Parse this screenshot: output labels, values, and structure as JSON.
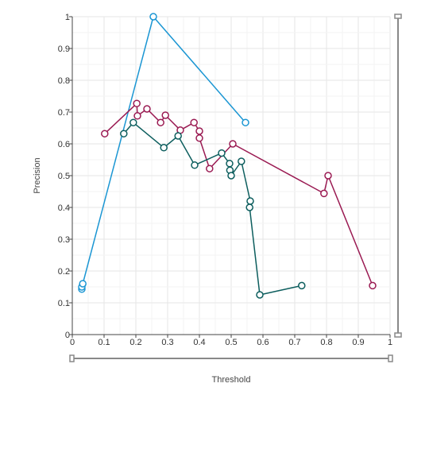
{
  "chart_data": {
    "type": "line",
    "xlabel": "Threshold",
    "ylabel": "Precision",
    "xlim": [
      0,
      1
    ],
    "ylim": [
      0,
      1
    ],
    "xticks": [
      "0",
      "0.1",
      "0.2",
      "0.3",
      "0.4",
      "0.5",
      "0.6",
      "0.7",
      "0.8",
      "0.9",
      "1"
    ],
    "yticks": [
      "0",
      "0.1",
      "0.2",
      "0.3",
      "0.4",
      "0.5",
      "0.6",
      "0.7",
      "0.8",
      "0.9",
      "1"
    ],
    "grid": true,
    "legend": "none",
    "series": [
      {
        "color": "#1b96d3",
        "points": [
          [
            0.03,
            0.143
          ],
          [
            0.03,
            0.15
          ],
          [
            0.033,
            0.16
          ],
          [
            0.255,
            1.0
          ],
          [
            0.545,
            0.667
          ]
        ]
      },
      {
        "color": "#9a1a52",
        "points": [
          [
            0.102,
            0.632
          ],
          [
            0.203,
            0.727
          ],
          [
            0.205,
            0.688
          ],
          [
            0.235,
            0.71
          ],
          [
            0.278,
            0.667
          ],
          [
            0.293,
            0.69
          ],
          [
            0.34,
            0.643
          ],
          [
            0.383,
            0.667
          ],
          [
            0.4,
            0.64
          ],
          [
            0.4,
            0.618
          ],
          [
            0.432,
            0.522
          ],
          [
            0.505,
            0.6
          ],
          [
            0.792,
            0.444
          ],
          [
            0.805,
            0.5
          ],
          [
            0.945,
            0.154
          ]
        ]
      },
      {
        "color": "#0d5e5e",
        "points": [
          [
            0.162,
            0.632
          ],
          [
            0.192,
            0.667
          ],
          [
            0.288,
            0.588
          ],
          [
            0.333,
            0.625
          ],
          [
            0.385,
            0.533
          ],
          [
            0.47,
            0.571
          ],
          [
            0.495,
            0.538
          ],
          [
            0.496,
            0.517
          ],
          [
            0.5,
            0.5
          ],
          [
            0.532,
            0.545
          ],
          [
            0.56,
            0.42
          ],
          [
            0.558,
            0.4
          ],
          [
            0.59,
            0.125
          ],
          [
            0.722,
            0.154
          ]
        ]
      }
    ]
  }
}
